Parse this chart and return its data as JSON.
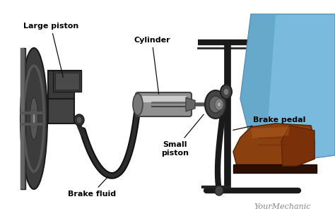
{
  "bg_color": "#ffffff",
  "labels": {
    "large_piston": "Large piston",
    "brake_fluid": "Brake fluid",
    "cylinder": "Cylinder",
    "small_piston": "Small\npiston",
    "brake_pedal": "Brake pedal",
    "watermark": "YourMechanic"
  },
  "colors": {
    "rotor_dark": "#2a2a2a",
    "rotor_mid": "#484848",
    "rotor_light": "#888888",
    "caliper_dark": "#333333",
    "caliper_mid": "#4a4a4a",
    "hose": "#1a1a1a",
    "cyl_body": "#909090",
    "cyl_light": "#c0c0c0",
    "pedal_black": "#1a1a1a",
    "pivot_gray": "#555555",
    "shoe_brown": "#8B4513",
    "shoe_dark": "#5C2800",
    "leg_blue": "#7aaacc",
    "leg_blue2": "#5588bb",
    "annotation": "#111111",
    "watermark_color": "#888888"
  }
}
